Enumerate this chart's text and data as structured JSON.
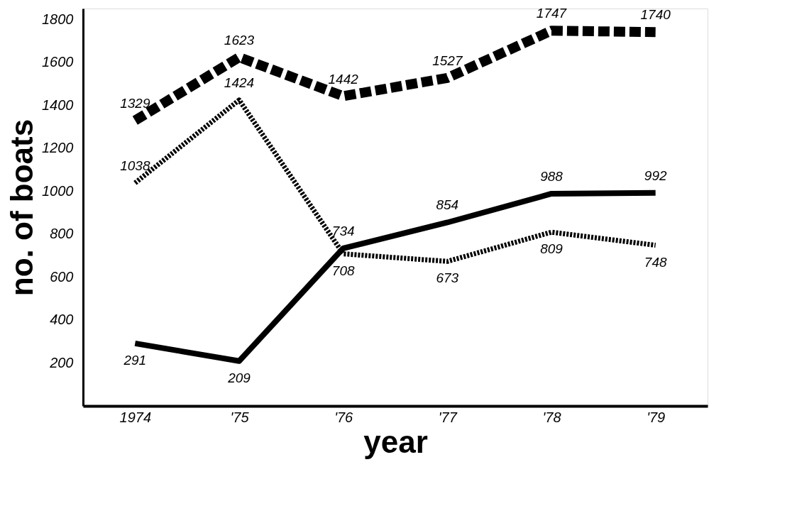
{
  "chart_data": {
    "type": "line",
    "xlabel": "year",
    "ylabel": "no. of boats",
    "categories": [
      "1974",
      "'75",
      "'76",
      "'77",
      "'78",
      "'79"
    ],
    "series": [
      {
        "color": "#000000",
        "line_style": "dashed",
        "values": [
          1329,
          1623,
          1442,
          1527,
          1747,
          1740
        ]
      },
      {
        "color": "#000000",
        "line_style": "dotted",
        "values": [
          1038,
          1424,
          708,
          673,
          809,
          748
        ]
      },
      {
        "color": "#000000",
        "line_style": "solid",
        "values": [
          291,
          209,
          734,
          854,
          988,
          992
        ]
      }
    ],
    "ylim": [
      0,
      1850
    ],
    "yticks": [
      200,
      400,
      600,
      800,
      1000,
      1200,
      1400,
      1600,
      1800
    ],
    "grid": false,
    "marker": "none",
    "data_labels": true
  }
}
